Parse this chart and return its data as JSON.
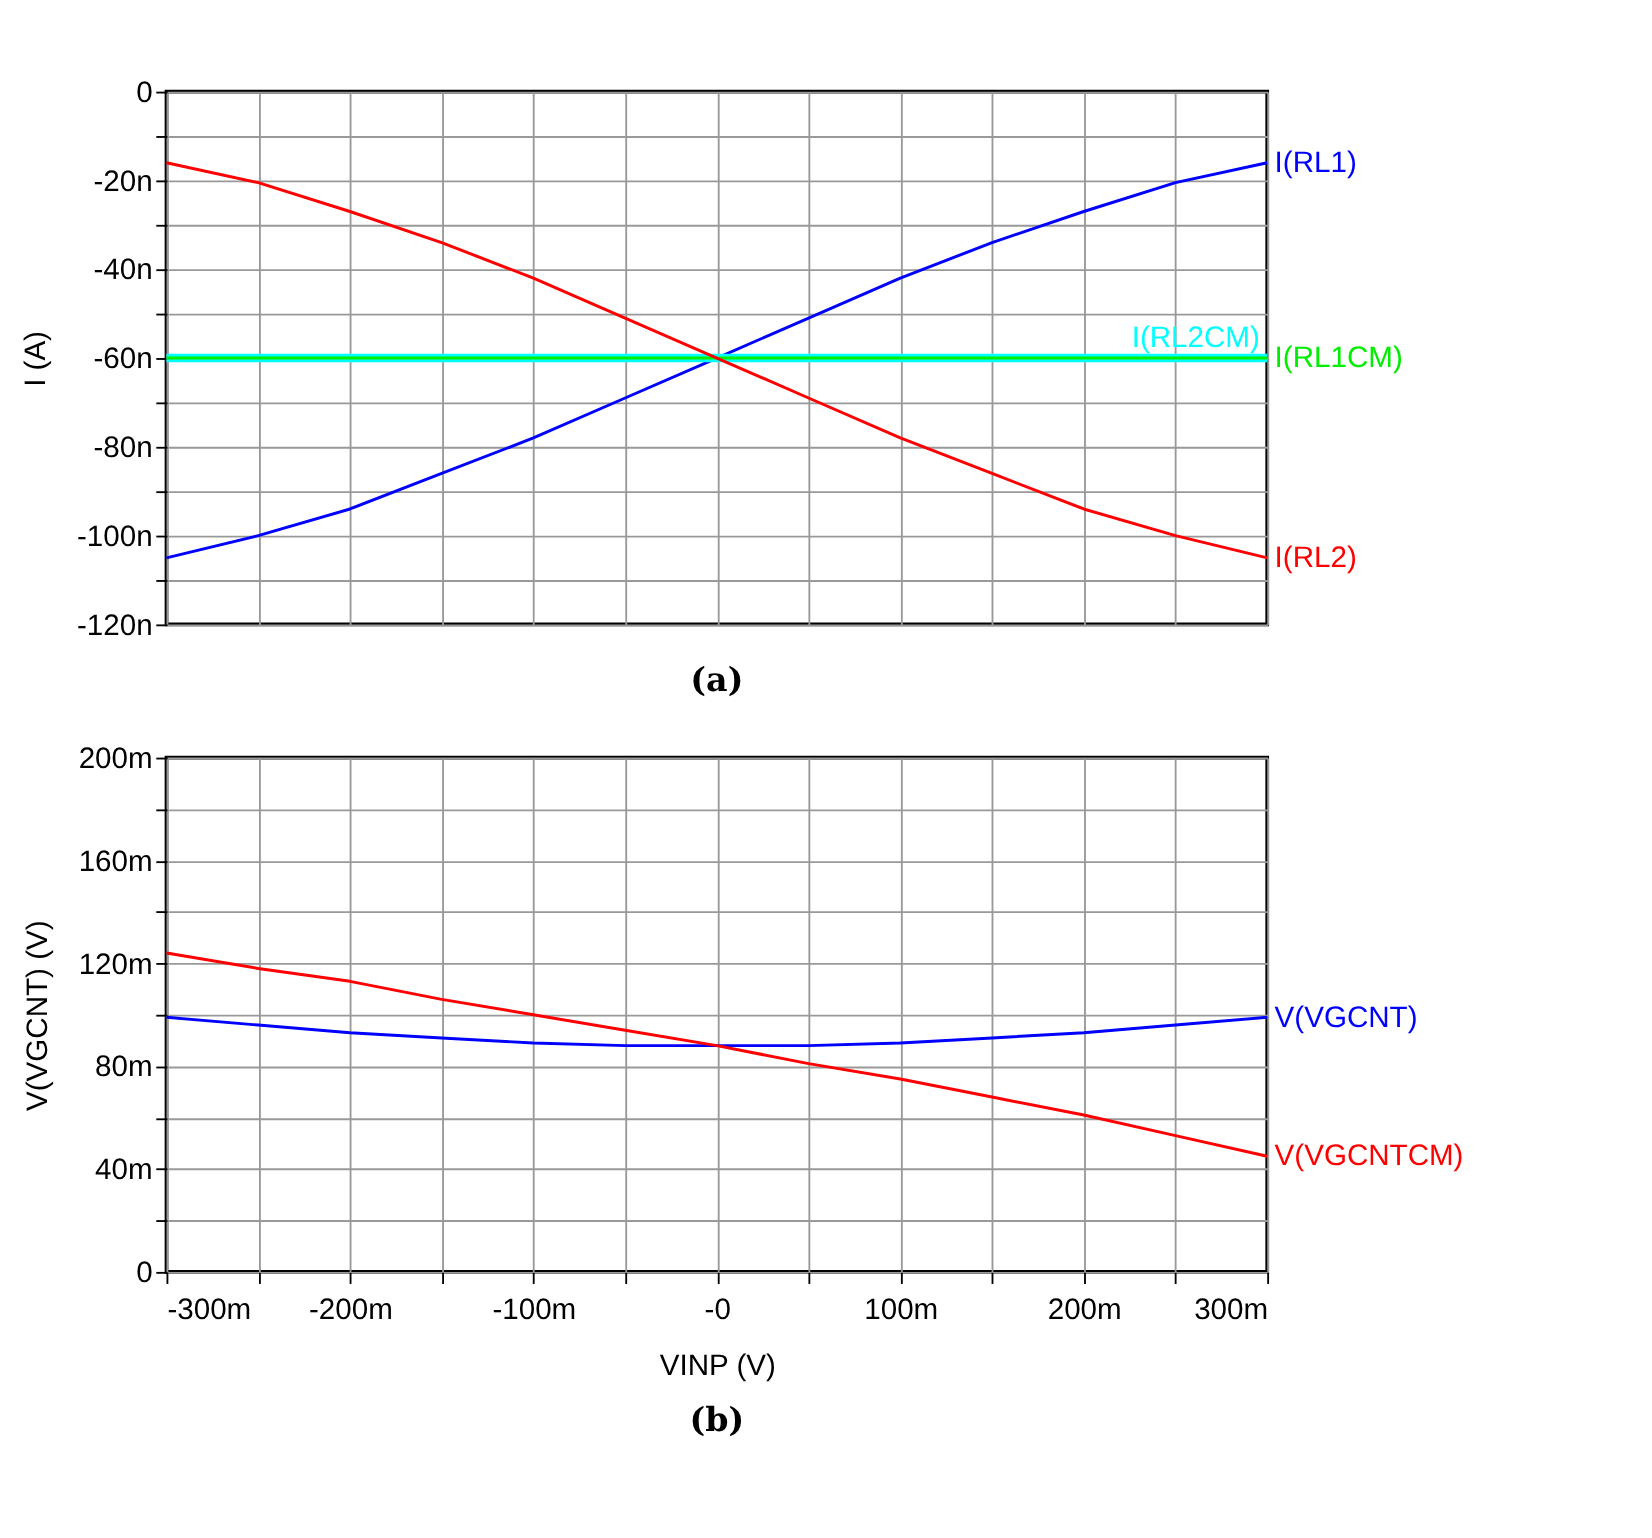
{
  "chart_data": [
    {
      "type": "line",
      "title": "(a)",
      "ylabel": "I (A)",
      "x": [
        -300,
        -250,
        -200,
        -150,
        -100,
        -50,
        0,
        50,
        100,
        150,
        200,
        250,
        300
      ],
      "series": [
        {
          "name": "I(RL1)",
          "color": "#0000ff",
          "values": [
            -105,
            -100,
            -94,
            -86,
            -78,
            -69,
            -60,
            -51,
            -42,
            -34,
            -27,
            -20.5,
            -16
          ]
        },
        {
          "name": "I(RL2CM)",
          "color": "#00ffff",
          "values": [
            -60,
            -60,
            -60,
            -60,
            -60,
            -60,
            -60,
            -60,
            -60,
            -60,
            -60,
            -60,
            -60
          ]
        },
        {
          "name": "I(RL1CM)",
          "color": "#00ee00",
          "values": [
            -60,
            -60,
            -60,
            -60,
            -60,
            -60,
            -60,
            -60,
            -60,
            -60,
            -60,
            -60,
            -60
          ]
        },
        {
          "name": "I(RL2)",
          "color": "#ff0000",
          "values": [
            -16,
            -20.5,
            -27,
            -34,
            -42,
            -51,
            -60,
            -69,
            -78,
            -86,
            -94,
            -100,
            -105
          ]
        }
      ],
      "xlim": [
        -300,
        300
      ],
      "xticks": [
        {
          "value": -300,
          "label": null
        },
        {
          "value": -250,
          "label": null
        },
        {
          "value": -200,
          "label": null
        },
        {
          "value": -150,
          "label": null
        },
        {
          "value": -100,
          "label": null
        },
        {
          "value": -50,
          "label": null
        },
        {
          "value": 0,
          "label": null
        },
        {
          "value": 50,
          "label": null
        },
        {
          "value": 100,
          "label": null
        },
        {
          "value": 150,
          "label": null
        },
        {
          "value": 200,
          "label": null
        },
        {
          "value": 250,
          "label": null
        },
        {
          "value": 300,
          "label": null
        }
      ],
      "ylim": [
        -120,
        0
      ],
      "yticks": [
        {
          "value": -120,
          "label": "-120n"
        },
        {
          "value": -110,
          "label": null
        },
        {
          "value": -100,
          "label": "-100n"
        },
        {
          "value": -90,
          "label": null
        },
        {
          "value": -80,
          "label": "-80n"
        },
        {
          "value": -70,
          "label": null
        },
        {
          "value": -60,
          "label": "-60n"
        },
        {
          "value": -50,
          "label": null
        },
        {
          "value": -40,
          "label": "-40n"
        },
        {
          "value": -30,
          "label": null
        },
        {
          "value": -20,
          "label": "-20n"
        },
        {
          "value": -10,
          "label": null
        },
        0
      ],
      "tick_labels": "y",
      "grid": true,
      "legend": false,
      "line_style": "solid",
      "marker": "none"
    },
    {
      "type": "line",
      "title": "(b)",
      "xlabel": "VINP (V)",
      "ylabel": "V(VGCNT) (V)",
      "x": [
        -300,
        -250,
        -200,
        -150,
        -100,
        -50,
        0,
        50,
        100,
        150,
        200,
        250,
        300
      ],
      "series": [
        {
          "name": "V(VGCNT)",
          "color": "#0000ff",
          "values": [
            99,
            96,
            93,
            91,
            89,
            88,
            88,
            88,
            89,
            91,
            93,
            96,
            99
          ]
        },
        {
          "name": "V(VGCNTCM)",
          "color": "#ff0000",
          "values": [
            124,
            118,
            113,
            106,
            100,
            94,
            88,
            81,
            75,
            68,
            61,
            53,
            45
          ]
        }
      ],
      "xlim": [
        -300,
        300
      ],
      "xticks": [
        {
          "value": -300,
          "label": "-300m"
        },
        {
          "value": -250,
          "label": null
        },
        {
          "value": -200,
          "label": "-200m"
        },
        {
          "value": -150,
          "label": null
        },
        {
          "value": -100,
          "label": "-100m"
        },
        {
          "value": -50,
          "label": null
        },
        {
          "value": 0,
          "label": "-0"
        },
        {
          "value": 50,
          "label": null
        },
        {
          "value": 100,
          "label": "100m"
        },
        {
          "value": 150,
          "label": null
        },
        {
          "value": 200,
          "label": "200m"
        },
        {
          "value": 250,
          "label": null
        },
        {
          "value": 300,
          "label": "300m"
        }
      ],
      "ylim": [
        0,
        200
      ],
      "yticks": [
        0,
        {
          "value": 20,
          "label": null
        },
        {
          "value": 40,
          "label": "40m"
        },
        {
          "value": 60,
          "label": null
        },
        {
          "value": 80,
          "label": "80m"
        },
        {
          "value": 100,
          "label": null
        },
        {
          "value": 120,
          "label": "120m"
        },
        {
          "value": 140,
          "label": null
        },
        {
          "value": 160,
          "label": "160m"
        },
        {
          "value": 180,
          "label": null
        },
        {
          "value": 200,
          "label": "200m"
        }
      ],
      "grid": true,
      "legend": false,
      "line_style": "solid",
      "marker": "none"
    }
  ]
}
